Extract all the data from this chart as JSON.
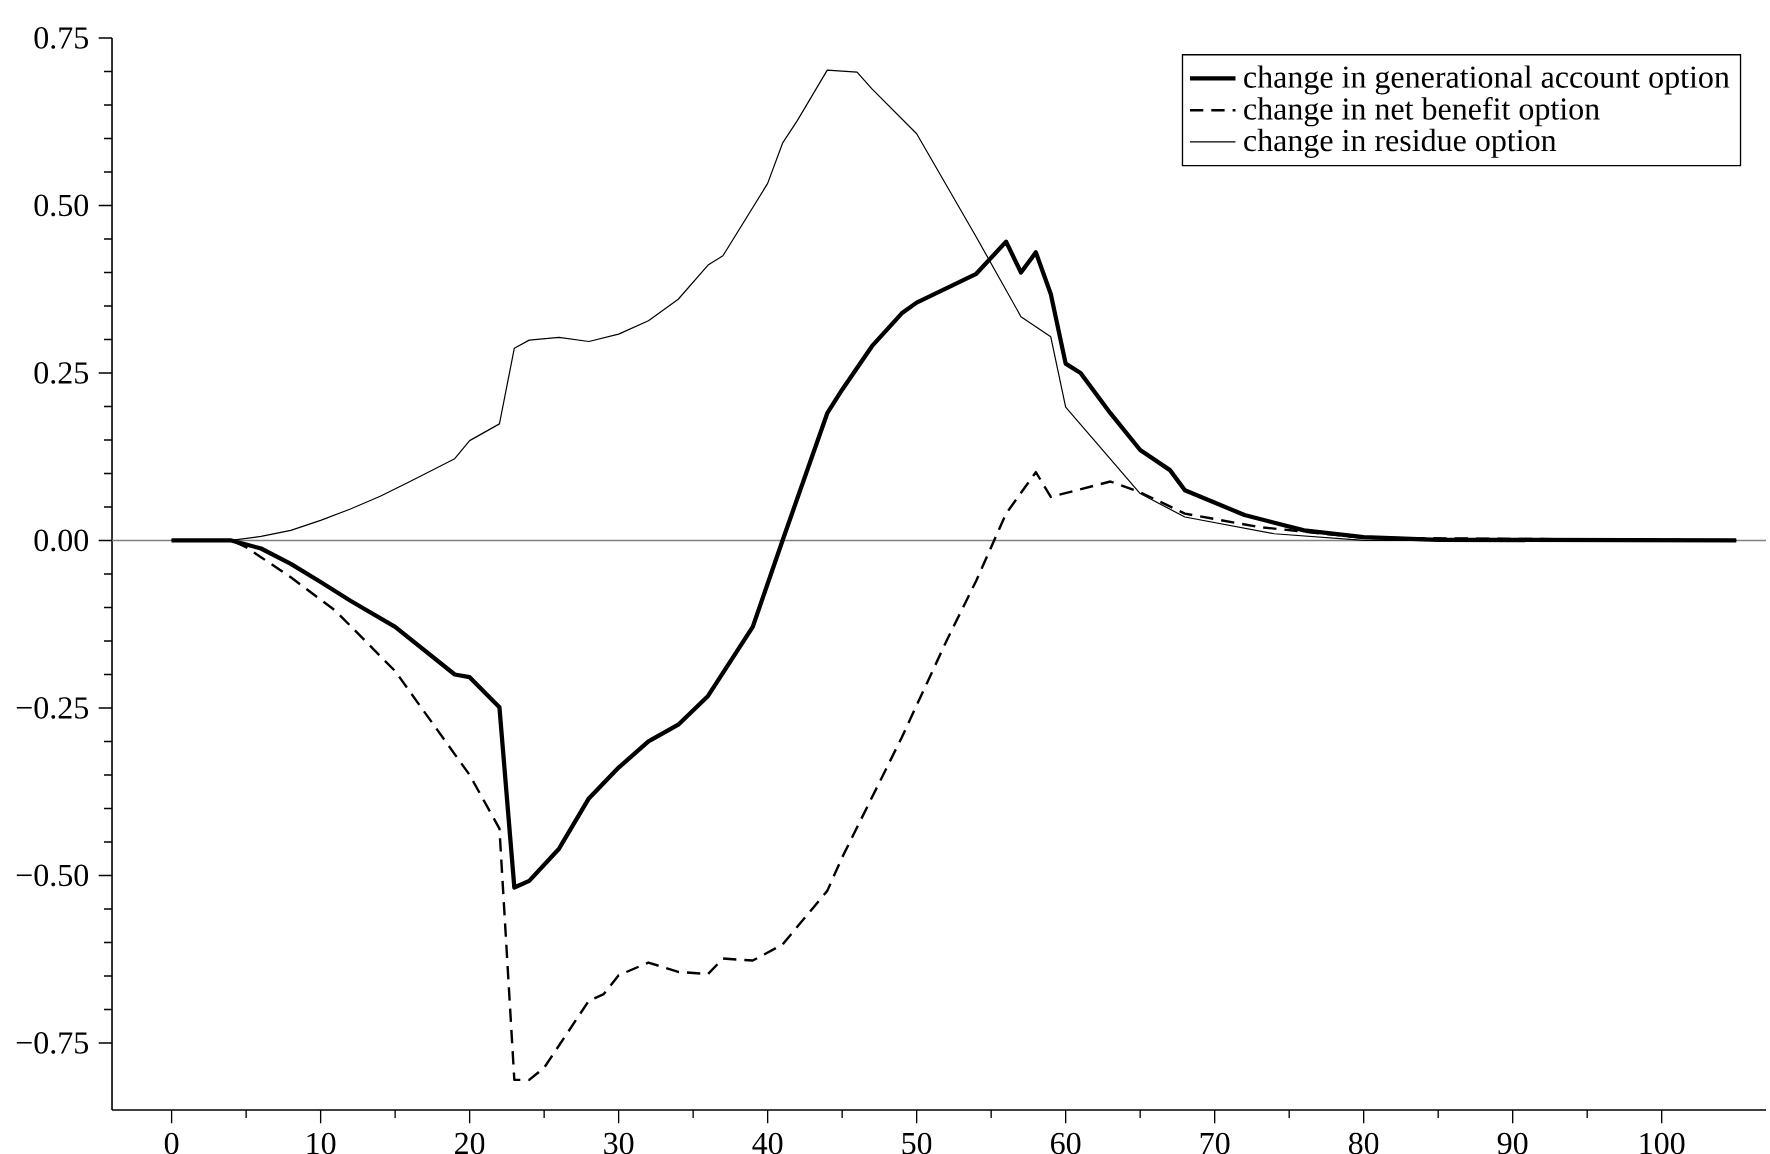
{
  "chart_data": {
    "type": "line",
    "xlim": [
      -4,
      107
    ],
    "ylim": [
      -0.85,
      0.75
    ],
    "xticks": [
      0,
      10,
      20,
      30,
      40,
      50,
      60,
      70,
      80,
      90,
      100
    ],
    "yticks": [
      {
        "value": -0.75,
        "label": "−0.75"
      },
      {
        "value": -0.5,
        "label": "−0.50"
      },
      {
        "value": -0.25,
        "label": "−0.25"
      },
      {
        "value": 0,
        "label": "0.00"
      },
      {
        "value": 0.25,
        "label": "0.25"
      },
      {
        "value": 0.5,
        "label": "0.50"
      },
      {
        "value": 0.75,
        "label": "0.75"
      }
    ],
    "grid": false,
    "legend": "top right",
    "marker": "none",
    "ref_lines": [
      {
        "axis": "y",
        "value": 0,
        "color": "#808080"
      }
    ],
    "series": [
      {
        "name": "change in generational account option",
        "color": "#000000",
        "line_style": "solid",
        "x": [
          0,
          4,
          6,
          8,
          10,
          12,
          15,
          19,
          20,
          22,
          23,
          24,
          26,
          28,
          30,
          32,
          34,
          36,
          39,
          41,
          44,
          45,
          47,
          49,
          50,
          54,
          56,
          57,
          58,
          59,
          60,
          61,
          63,
          65,
          67,
          68,
          72,
          76,
          80,
          85,
          105
        ],
        "values": [
          0,
          0,
          -0.012,
          -0.035,
          -0.062,
          -0.09,
          -0.129,
          -0.2,
          -0.204,
          -0.249,
          -0.518,
          -0.508,
          -0.46,
          -0.385,
          -0.339,
          -0.3,
          -0.275,
          -0.232,
          -0.129,
          0,
          0.19,
          0.225,
          0.29,
          0.339,
          0.355,
          0.398,
          0.446,
          0.4,
          0.43,
          0.368,
          0.264,
          0.25,
          0.19,
          0.135,
          0.105,
          0.075,
          0.038,
          0.015,
          0.005,
          0.001,
          0
        ]
      },
      {
        "name": "change in net benefit option",
        "color": "#000000",
        "line_style": "dashed",
        "x": [
          0,
          4,
          5,
          6,
          8,
          11,
          15,
          20,
          22,
          23,
          24,
          25,
          28,
          29,
          30,
          32,
          34,
          36,
          37,
          39,
          41,
          44,
          45,
          49,
          52,
          54,
          56,
          58,
          59,
          63,
          65,
          68,
          73,
          80,
          105
        ],
        "values": [
          0,
          0,
          -0.01,
          -0.025,
          -0.055,
          -0.105,
          -0.195,
          -0.35,
          -0.43,
          -0.805,
          -0.805,
          -0.787,
          -0.687,
          -0.677,
          -0.649,
          -0.63,
          -0.644,
          -0.647,
          -0.624,
          -0.627,
          -0.603,
          -0.523,
          -0.473,
          -0.294,
          -0.15,
          -0.06,
          0.04,
          0.102,
          0.065,
          0.088,
          0.072,
          0.04,
          0.02,
          0.004,
          0
        ]
      },
      {
        "name": "change in residue option",
        "color": "#000000",
        "line_style": "solid",
        "x": [
          0,
          4,
          6,
          8,
          10,
          12,
          14,
          16,
          19,
          20,
          22,
          23,
          24,
          26,
          28,
          30,
          32,
          34,
          36,
          37,
          40,
          41,
          42,
          44,
          46,
          47,
          50,
          54,
          57,
          59,
          60,
          65,
          68,
          74,
          80,
          105
        ],
        "values": [
          0,
          0,
          0.006,
          0.015,
          0.03,
          0.047,
          0.066,
          0.088,
          0.122,
          0.149,
          0.174,
          0.287,
          0.299,
          0.303,
          0.297,
          0.308,
          0.328,
          0.36,
          0.411,
          0.425,
          0.533,
          0.593,
          0.627,
          0.702,
          0.699,
          0.674,
          0.607,
          0.453,
          0.334,
          0.304,
          0.199,
          0.07,
          0.035,
          0.01,
          0,
          0
        ]
      }
    ]
  }
}
